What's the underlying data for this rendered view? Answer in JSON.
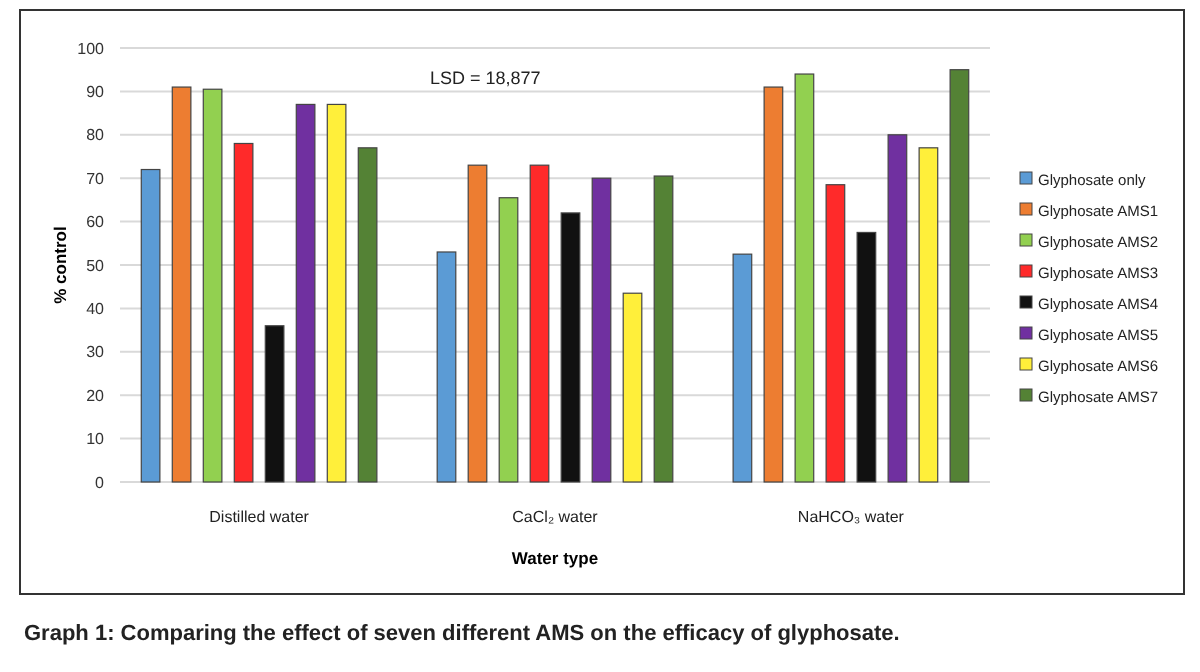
{
  "chart_data": {
    "type": "bar",
    "title": "Graph 1: Comparing the effect of seven different AMS on the efficacy of glyphosate.",
    "xlabel": "Water type",
    "ylabel": "% control",
    "categories": [
      "Distilled water",
      "CaCl₂ water",
      "NaHCO₃ water"
    ],
    "series": [
      {
        "name": "Glyphosate only",
        "color": "#5b9bd5",
        "values": [
          72,
          53,
          52.5
        ]
      },
      {
        "name": "Glyphosate AMS1",
        "color": "#ed7d31",
        "values": [
          91,
          73,
          91
        ]
      },
      {
        "name": "Glyphosate AMS2",
        "color": "#92d050",
        "values": [
          90.5,
          65.5,
          94
        ]
      },
      {
        "name": "Glyphosate AMS3",
        "color": "#ff2a2a",
        "values": [
          78,
          73,
          68.5
        ]
      },
      {
        "name": "Glyphosate AMS4",
        "color": "#111111",
        "values": [
          36,
          62,
          57.5
        ]
      },
      {
        "name": "Glyphosate AMS5",
        "color": "#7030a0",
        "values": [
          87,
          70,
          80
        ]
      },
      {
        "name": "Glyphosate AMS6",
        "color": "#ffef3a",
        "values": [
          87,
          43.5,
          77
        ]
      },
      {
        "name": "Glyphosate AMS7",
        "color": "#548235",
        "values": [
          77,
          70.5,
          95
        ]
      }
    ],
    "ylim": [
      0,
      100
    ],
    "yticks": [
      0,
      10,
      20,
      30,
      40,
      50,
      60,
      70,
      80,
      90,
      100
    ],
    "grid": "y",
    "legend": "right",
    "annotations": [
      "LSD = 18,877"
    ]
  }
}
